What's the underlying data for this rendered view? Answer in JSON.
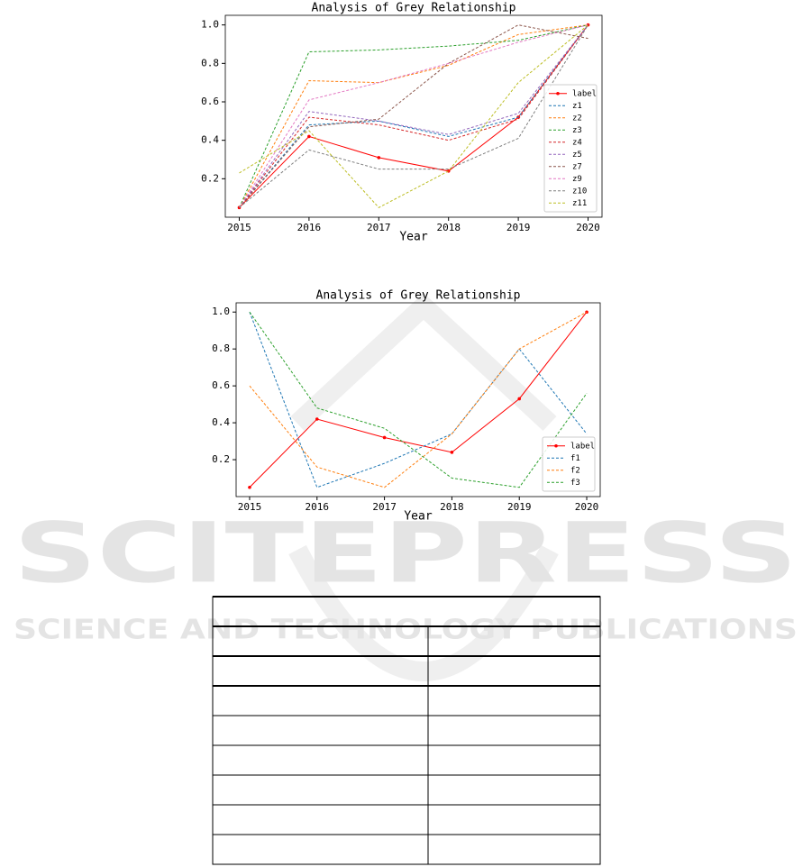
{
  "chart_data": [
    {
      "type": "line",
      "title": "Analysis of Grey Relationship",
      "xlabel": "Year",
      "x": [
        2015,
        2016,
        2017,
        2018,
        2019,
        2020
      ],
      "xlim": [
        2014.8,
        2020.2
      ],
      "xticks": [
        2015,
        2016,
        2017,
        2018,
        2019,
        2020
      ],
      "ylim": [
        0,
        1.05
      ],
      "yticks": [
        0.2,
        0.4,
        0.6,
        {
          "value": 1.0,
          "label": "1.0"
        },
        0.8
      ],
      "legend": "lower right",
      "grid": false,
      "series": [
        {
          "name": "label",
          "color": "#ff0000",
          "style": "solid",
          "marker": true,
          "values": [
            0.05,
            0.42,
            0.31,
            0.24,
            0.52,
            1.0
          ]
        },
        {
          "name": "z1",
          "color": "#1f77b4",
          "style": "dashed",
          "marker": false,
          "values": [
            0.05,
            0.48,
            0.5,
            0.42,
            0.52,
            1.0
          ]
        },
        {
          "name": "z2",
          "color": "#ff7f0e",
          "style": "dashed",
          "marker": false,
          "values": [
            0.05,
            0.71,
            0.7,
            0.79,
            0.95,
            1.0
          ]
        },
        {
          "name": "z3",
          "color": "#2ca02c",
          "style": "dashed",
          "marker": false,
          "values": [
            0.05,
            0.86,
            0.87,
            0.89,
            0.92,
            1.0
          ]
        },
        {
          "name": "z4",
          "color": "#d62728",
          "style": "dashed",
          "marker": false,
          "values": [
            0.05,
            0.52,
            0.48,
            0.4,
            0.51,
            1.0
          ]
        },
        {
          "name": "z5",
          "color": "#9467bd",
          "style": "dashed",
          "marker": false,
          "values": [
            0.05,
            0.55,
            0.5,
            0.43,
            0.54,
            1.0
          ]
        },
        {
          "name": "z7",
          "color": "#8c564b",
          "style": "dashed",
          "marker": false,
          "values": [
            0.05,
            0.47,
            0.51,
            0.8,
            1.0,
            0.93
          ]
        },
        {
          "name": "z9",
          "color": "#e377c2",
          "style": "dashed",
          "marker": false,
          "values": [
            0.05,
            0.61,
            0.7,
            0.8,
            0.91,
            1.0
          ]
        },
        {
          "name": "z10",
          "color": "#7f7f7f",
          "style": "dashed",
          "marker": false,
          "values": [
            0.05,
            0.35,
            0.25,
            0.25,
            0.41,
            1.0
          ]
        },
        {
          "name": "z11",
          "color": "#bcbd22",
          "style": "dashed",
          "marker": false,
          "values": [
            0.23,
            0.45,
            0.05,
            0.24,
            0.7,
            1.0
          ]
        }
      ]
    },
    {
      "type": "line",
      "title": "Analysis of Grey Relationship",
      "xlabel": "Year",
      "x": [
        2015,
        2016,
        2017,
        2018,
        2019,
        2020
      ],
      "xlim": [
        2014.8,
        2020.2
      ],
      "xticks": [
        2015,
        2016,
        2017,
        2018,
        2019,
        2020
      ],
      "ylim": [
        0,
        1.05
      ],
      "yticks": [
        0.2,
        0.4,
        0.6,
        0.8,
        {
          "value": 1.0,
          "label": "1.0"
        }
      ],
      "legend": "lower right",
      "grid": false,
      "series": [
        {
          "name": "label",
          "color": "#ff0000",
          "style": "solid",
          "marker": true,
          "values": [
            0.05,
            0.42,
            0.32,
            0.24,
            0.53,
            1.0
          ]
        },
        {
          "name": "f1",
          "color": "#1f77b4",
          "style": "dashed",
          "marker": false,
          "values": [
            1.0,
            0.05,
            0.18,
            0.34,
            0.8,
            0.34
          ]
        },
        {
          "name": "f2",
          "color": "#ff7f0e",
          "style": "dashed",
          "marker": false,
          "values": [
            0.6,
            0.16,
            0.05,
            0.34,
            0.8,
            1.0
          ]
        },
        {
          "name": "f3",
          "color": "#2ca02c",
          "style": "dashed",
          "marker": false,
          "values": [
            1.0,
            0.48,
            0.37,
            0.1,
            0.05,
            0.56
          ]
        }
      ]
    }
  ],
  "watermark": {
    "title": "SCITEPRESS",
    "subtitle": "SCIENCE AND TECHNOLOGY PUBLICATIONS"
  }
}
